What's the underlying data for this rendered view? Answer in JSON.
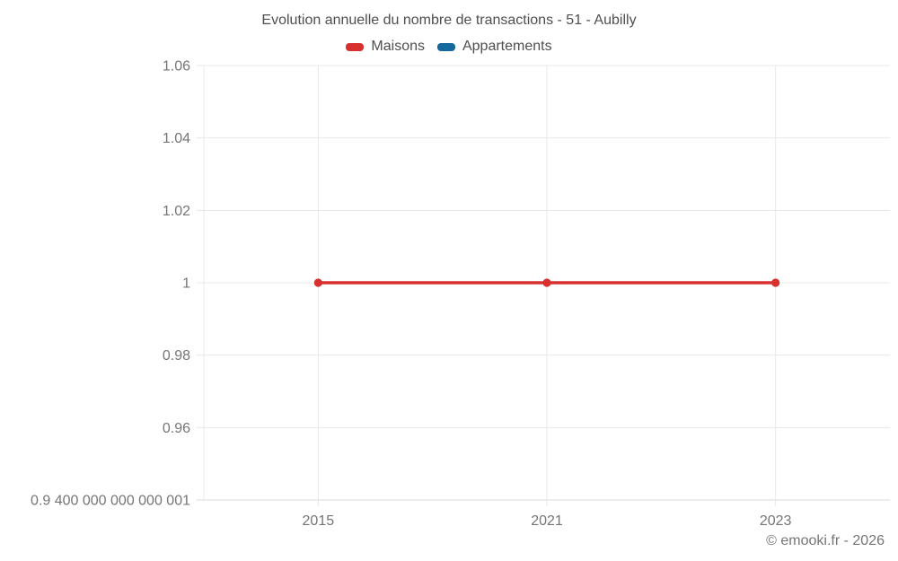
{
  "page": {
    "footer": "© emooki.fr - 2026",
    "background": "#ffffff"
  },
  "colors": {
    "grid": "#e8e8e8",
    "axis_line": "#d9d9d9",
    "tick_text": "#757575",
    "title_text": "#4f4f4f",
    "maisons_red": "#d7302f",
    "appartements_blue": "#15699f"
  },
  "chart_data": {
    "type": "line",
    "title": "Evolution annuelle du nombre de transactions - 51 - Aubilly",
    "xlabel": "",
    "ylabel": "",
    "categories": [
      "2015",
      "2021",
      "2023"
    ],
    "series": [
      {
        "name": "Maisons",
        "color": "#d7302f",
        "values": [
          1,
          1,
          1
        ]
      },
      {
        "name": "Appartements",
        "color": "#15699f",
        "values": []
      }
    ],
    "y_ticks": [
      {
        "label": "1.06",
        "value": 1.06
      },
      {
        "label": "1.04",
        "value": 1.04
      },
      {
        "label": "1.02",
        "value": 1.02
      },
      {
        "label": "1",
        "value": 1.0
      },
      {
        "label": "0.98",
        "value": 0.98
      },
      {
        "label": "0.96",
        "value": 0.96
      },
      {
        "label": "0.9 400 000 000 000 001",
        "value": 0.9400000000000001
      }
    ],
    "ylim": [
      0.9400000000000001,
      1.06
    ],
    "grid": true,
    "legend_position": "top",
    "x_axis_type": "category"
  }
}
